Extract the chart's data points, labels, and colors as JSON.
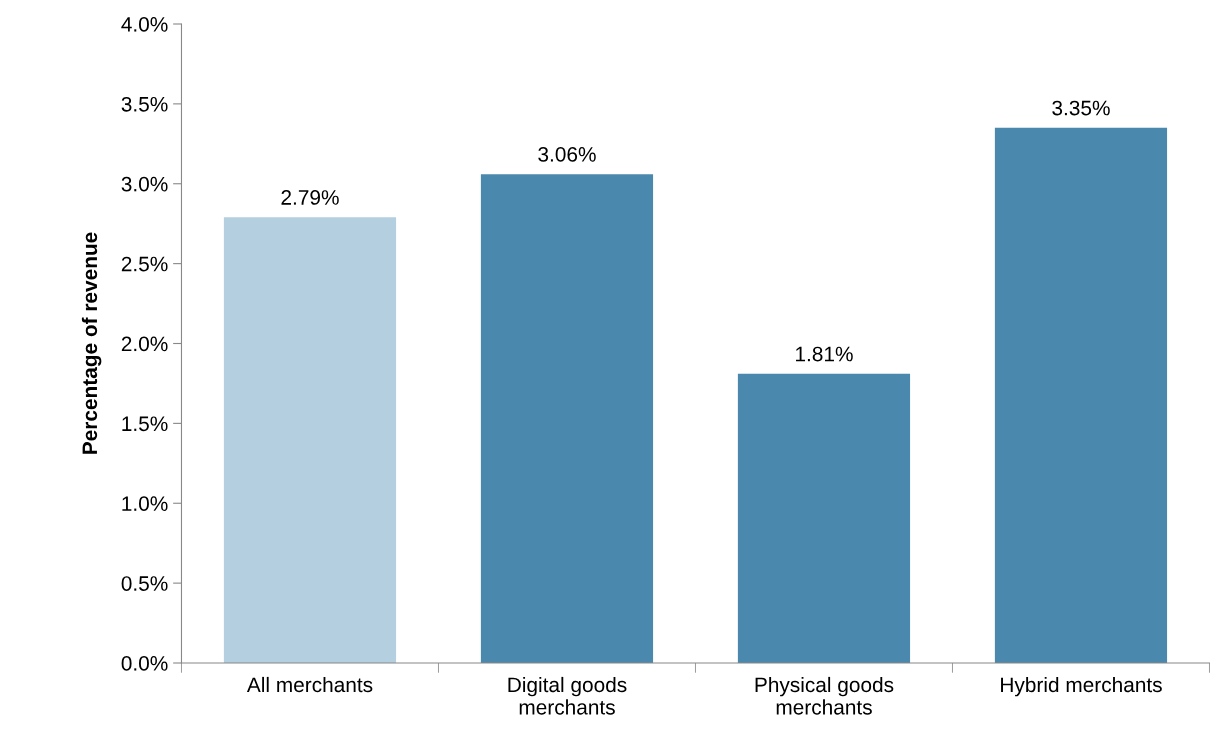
{
  "chart_data": {
    "type": "bar",
    "ylabel": "Percentage of revenue",
    "categories": [
      "All merchants",
      "Digital goods\nmerchants",
      "Physical goods\nmerchants",
      "Hybrid merchants"
    ],
    "values": [
      2.79,
      3.06,
      1.81,
      3.35
    ],
    "colors": [
      "#b3cfe0",
      "#4a88ad",
      "#4a88ad",
      "#4a88ad"
    ],
    "value_labels": [
      "2.79%",
      "3.06%",
      "1.81%",
      "3.35%"
    ],
    "ylim": [
      0,
      4
    ],
    "yticks": [
      {
        "value": 0,
        "label": "0.0%"
      },
      {
        "value": 0.5,
        "label": "0.5%"
      },
      {
        "value": 1,
        "label": "1.0%"
      },
      {
        "value": 1.5,
        "label": "1.5%"
      },
      {
        "value": 2,
        "label": "2.0%"
      },
      {
        "value": 2.5,
        "label": "2.5%"
      },
      {
        "value": 3,
        "label": "3.0%"
      },
      {
        "value": 3.5,
        "label": "3.5%"
      },
      {
        "value": 4,
        "label": "4.0%"
      }
    ],
    "grid": false,
    "legend": false
  }
}
